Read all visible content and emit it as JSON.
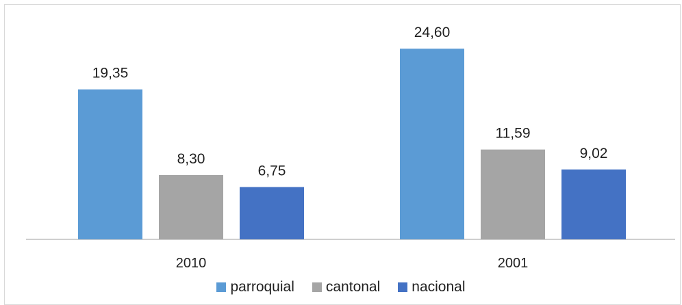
{
  "chart_data": {
    "type": "bar",
    "title": "",
    "xlabel": "",
    "ylabel": "",
    "categories": [
      "2010",
      "2001"
    ],
    "series": [
      {
        "name": "parroquial",
        "values": [
          19.35,
          24.6
        ],
        "labels": [
          "19,35",
          "24,60"
        ],
        "color": "#5b9bd5"
      },
      {
        "name": "cantonal",
        "values": [
          8.3,
          11.59
        ],
        "labels": [
          "8,30",
          "11,59"
        ],
        "color": "#a5a5a5"
      },
      {
        "name": "nacional",
        "values": [
          6.75,
          9.02
        ],
        "labels": [
          "6,75",
          "9,02"
        ],
        "color": "#4472c4"
      }
    ],
    "ylim": [
      0,
      30
    ],
    "grid": false,
    "y_axis_visible": false,
    "legend_position": "bottom",
    "data_labels": true
  }
}
